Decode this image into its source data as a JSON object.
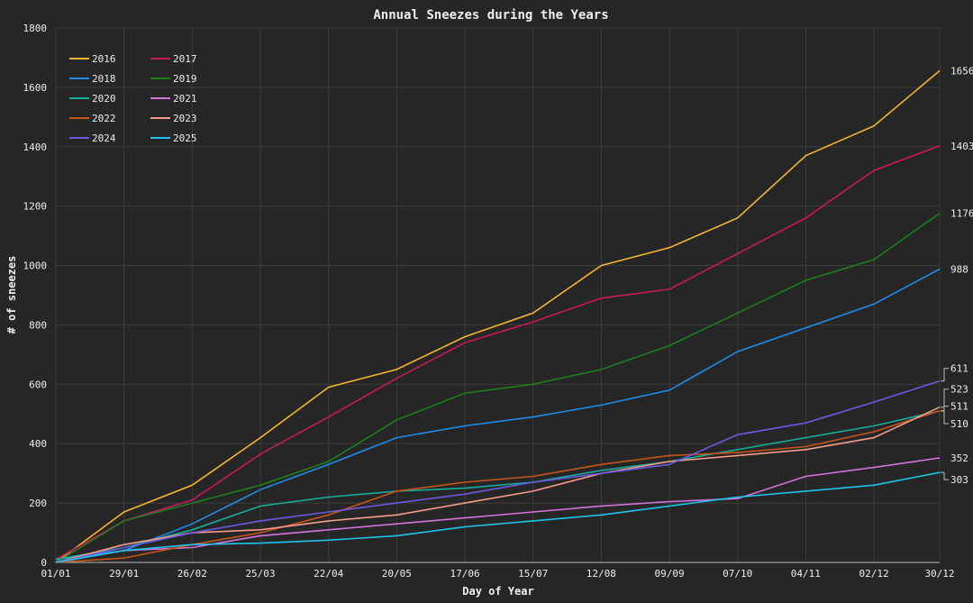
{
  "chart_data": {
    "type": "line",
    "title": "Annual Sneezes during the Years",
    "xlabel": "Day of Year",
    "ylabel": "# of sneezes",
    "ylim": [
      0,
      1800
    ],
    "xlim": [
      0,
      363
    ],
    "yticks": [
      0,
      200,
      400,
      600,
      800,
      1000,
      1200,
      1400,
      1600,
      1800
    ],
    "xtick_labels": [
      "01/01",
      "29/01",
      "26/02",
      "25/03",
      "22/04",
      "20/05",
      "17/06",
      "15/07",
      "12/08",
      "09/09",
      "07/10",
      "04/11",
      "02/12",
      "30/12"
    ],
    "grid": true,
    "legend_placement": "top-left",
    "x_days": [
      0,
      28,
      56,
      84,
      112,
      140,
      168,
      196,
      224,
      252,
      280,
      308,
      336,
      363
    ],
    "series": [
      {
        "name": "2016",
        "color": "#f5b531",
        "end_label": "1656",
        "values": [
          0,
          170,
          260,
          420,
          590,
          650,
          760,
          840,
          1000,
          1060,
          1160,
          1370,
          1470,
          1656
        ]
      },
      {
        "name": "2017",
        "color": "#c8185e",
        "end_label": "1403",
        "values": [
          10,
          140,
          210,
          365,
          490,
          620,
          740,
          810,
          890,
          920,
          1040,
          1160,
          1320,
          1403
        ]
      },
      {
        "name": "2018",
        "color": "#1f8ceb",
        "end_label": "988",
        "values": [
          10,
          40,
          130,
          245,
          330,
          420,
          460,
          490,
          530,
          580,
          710,
          790,
          870,
          988
        ]
      },
      {
        "name": "2019",
        "color": "#1b7f1b",
        "end_label": "1176",
        "values": [
          0,
          140,
          200,
          260,
          340,
          480,
          570,
          600,
          650,
          730,
          840,
          950,
          1020,
          1176
        ]
      },
      {
        "name": "2020",
        "color": "#17ab9c",
        "end_label": "510",
        "values": [
          10,
          50,
          110,
          190,
          220,
          240,
          250,
          270,
          310,
          340,
          380,
          420,
          460,
          510
        ]
      },
      {
        "name": "2021",
        "color": "#d572dc",
        "end_label": "352",
        "values": [
          0,
          40,
          50,
          90,
          110,
          130,
          150,
          170,
          190,
          205,
          215,
          290,
          320,
          352
        ]
      },
      {
        "name": "2022",
        "color": "#c4561a",
        "end_label": "511",
        "values": [
          0,
          15,
          60,
          100,
          160,
          240,
          270,
          290,
          330,
          360,
          370,
          390,
          440,
          511
        ]
      },
      {
        "name": "2023",
        "color": "#f59a8c",
        "end_label": "523",
        "values": [
          0,
          60,
          100,
          110,
          140,
          160,
          200,
          240,
          300,
          340,
          360,
          380,
          420,
          523
        ]
      },
      {
        "name": "2024",
        "color": "#6a5ae2",
        "end_label": "611",
        "values": [
          0,
          50,
          100,
          140,
          170,
          200,
          230,
          270,
          300,
          330,
          430,
          470,
          540,
          611
        ]
      },
      {
        "name": "2025",
        "color": "#20c3ea",
        "end_label": "303",
        "values": [
          0,
          40,
          60,
          65,
          75,
          90,
          120,
          140,
          160,
          190,
          220,
          240,
          260,
          303
        ]
      }
    ]
  }
}
